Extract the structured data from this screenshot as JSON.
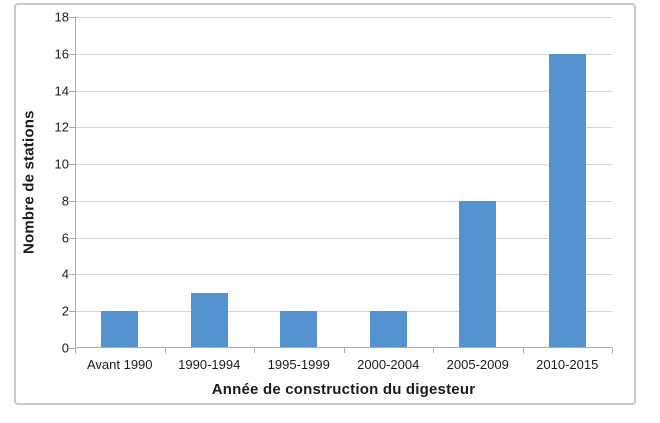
{
  "chart_data": {
    "type": "bar",
    "title": "",
    "categories": [
      "Avant 1990",
      "1990-1994",
      "1995-1999",
      "2000-2004",
      "2005-2009",
      "2010-2015"
    ],
    "values": [
      2,
      3,
      2,
      2,
      8,
      16
    ],
    "xlabel": "Année de construction du digesteur",
    "ylabel": "Nombre de stations",
    "ylim": [
      0,
      18
    ],
    "ytick_step": 2,
    "ytick_labels": [
      "0",
      "2",
      "4",
      "6",
      "8",
      "10",
      "12",
      "14",
      "16",
      "18"
    ],
    "grid": "horizontal",
    "legend_position": "none"
  },
  "colors": {
    "bar": "#5592d0",
    "grid": "#d4d4d4",
    "axis": "#ababab",
    "frame_border": "#c9c9c9",
    "text": "#1c1c1c"
  }
}
